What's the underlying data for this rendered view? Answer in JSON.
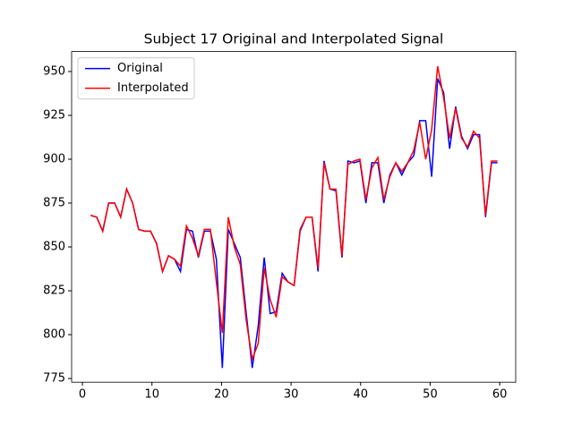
{
  "chart_data": {
    "type": "line",
    "title": "Subject 17 Original and Interpolated Signal",
    "x": [
      1.2,
      2.06,
      2.92,
      3.78,
      4.64,
      5.5,
      6.36,
      7.22,
      8.08,
      8.94,
      9.8,
      10.66,
      11.52,
      12.38,
      13.24,
      14.1,
      14.96,
      15.82,
      16.68,
      17.54,
      18.4,
      19.26,
      20.12,
      20.98,
      21.84,
      22.7,
      23.56,
      24.42,
      25.28,
      26.14,
      27.0,
      27.86,
      28.72,
      29.58,
      30.44,
      31.3,
      32.16,
      33.02,
      33.88,
      34.74,
      35.6,
      36.46,
      37.32,
      38.18,
      39.04,
      39.9,
      40.76,
      41.62,
      42.48,
      43.34,
      44.2,
      45.06,
      45.92,
      46.78,
      47.64,
      48.5,
      49.36,
      50.22,
      51.08,
      51.94,
      52.8,
      53.66,
      54.52,
      55.38,
      56.24,
      57.1,
      57.96,
      58.82,
      59.68
    ],
    "series": [
      {
        "name": "Original",
        "color": "#0000ff",
        "values": [
          868,
          867,
          859,
          875,
          875,
          867,
          883,
          875,
          860,
          859,
          859,
          852,
          836,
          845,
          843,
          836,
          860,
          859,
          844,
          859,
          859,
          843,
          781,
          860,
          852,
          844,
          812,
          781,
          805,
          844,
          812,
          813,
          835,
          830,
          828,
          859,
          867,
          867,
          836,
          899,
          883,
          882,
          844,
          899,
          898,
          899,
          875,
          898,
          898,
          875,
          891,
          898,
          891,
          898,
          902,
          922,
          922,
          890,
          946,
          938,
          906,
          930,
          913,
          906,
          914,
          914,
          867,
          898,
          898
        ]
      },
      {
        "name": "Interpolated",
        "color": "#ff0000",
        "values": [
          868,
          867,
          859,
          875,
          875,
          867,
          883,
          875,
          860,
          859,
          859,
          852,
          836,
          845,
          843,
          839,
          862,
          855,
          845,
          860,
          860,
          830,
          801,
          867,
          850,
          840,
          808,
          786,
          795,
          838,
          820,
          810,
          833,
          830,
          828,
          860,
          867,
          867,
          838,
          898,
          883,
          883,
          845,
          897,
          899,
          900,
          877,
          895,
          901,
          877,
          890,
          898,
          893,
          898,
          905,
          921,
          900,
          917,
          953,
          935,
          912,
          929,
          912,
          907,
          916,
          912,
          868,
          899,
          899
        ]
      }
    ],
    "xlim": [
      -1.55,
      62.3
    ],
    "ylim": [
      772.9,
      961.4
    ],
    "xticks": [
      0,
      10,
      20,
      30,
      40,
      50,
      60
    ],
    "yticks": [
      775,
      800,
      825,
      850,
      875,
      900,
      925,
      950
    ],
    "legend": "upper left"
  }
}
